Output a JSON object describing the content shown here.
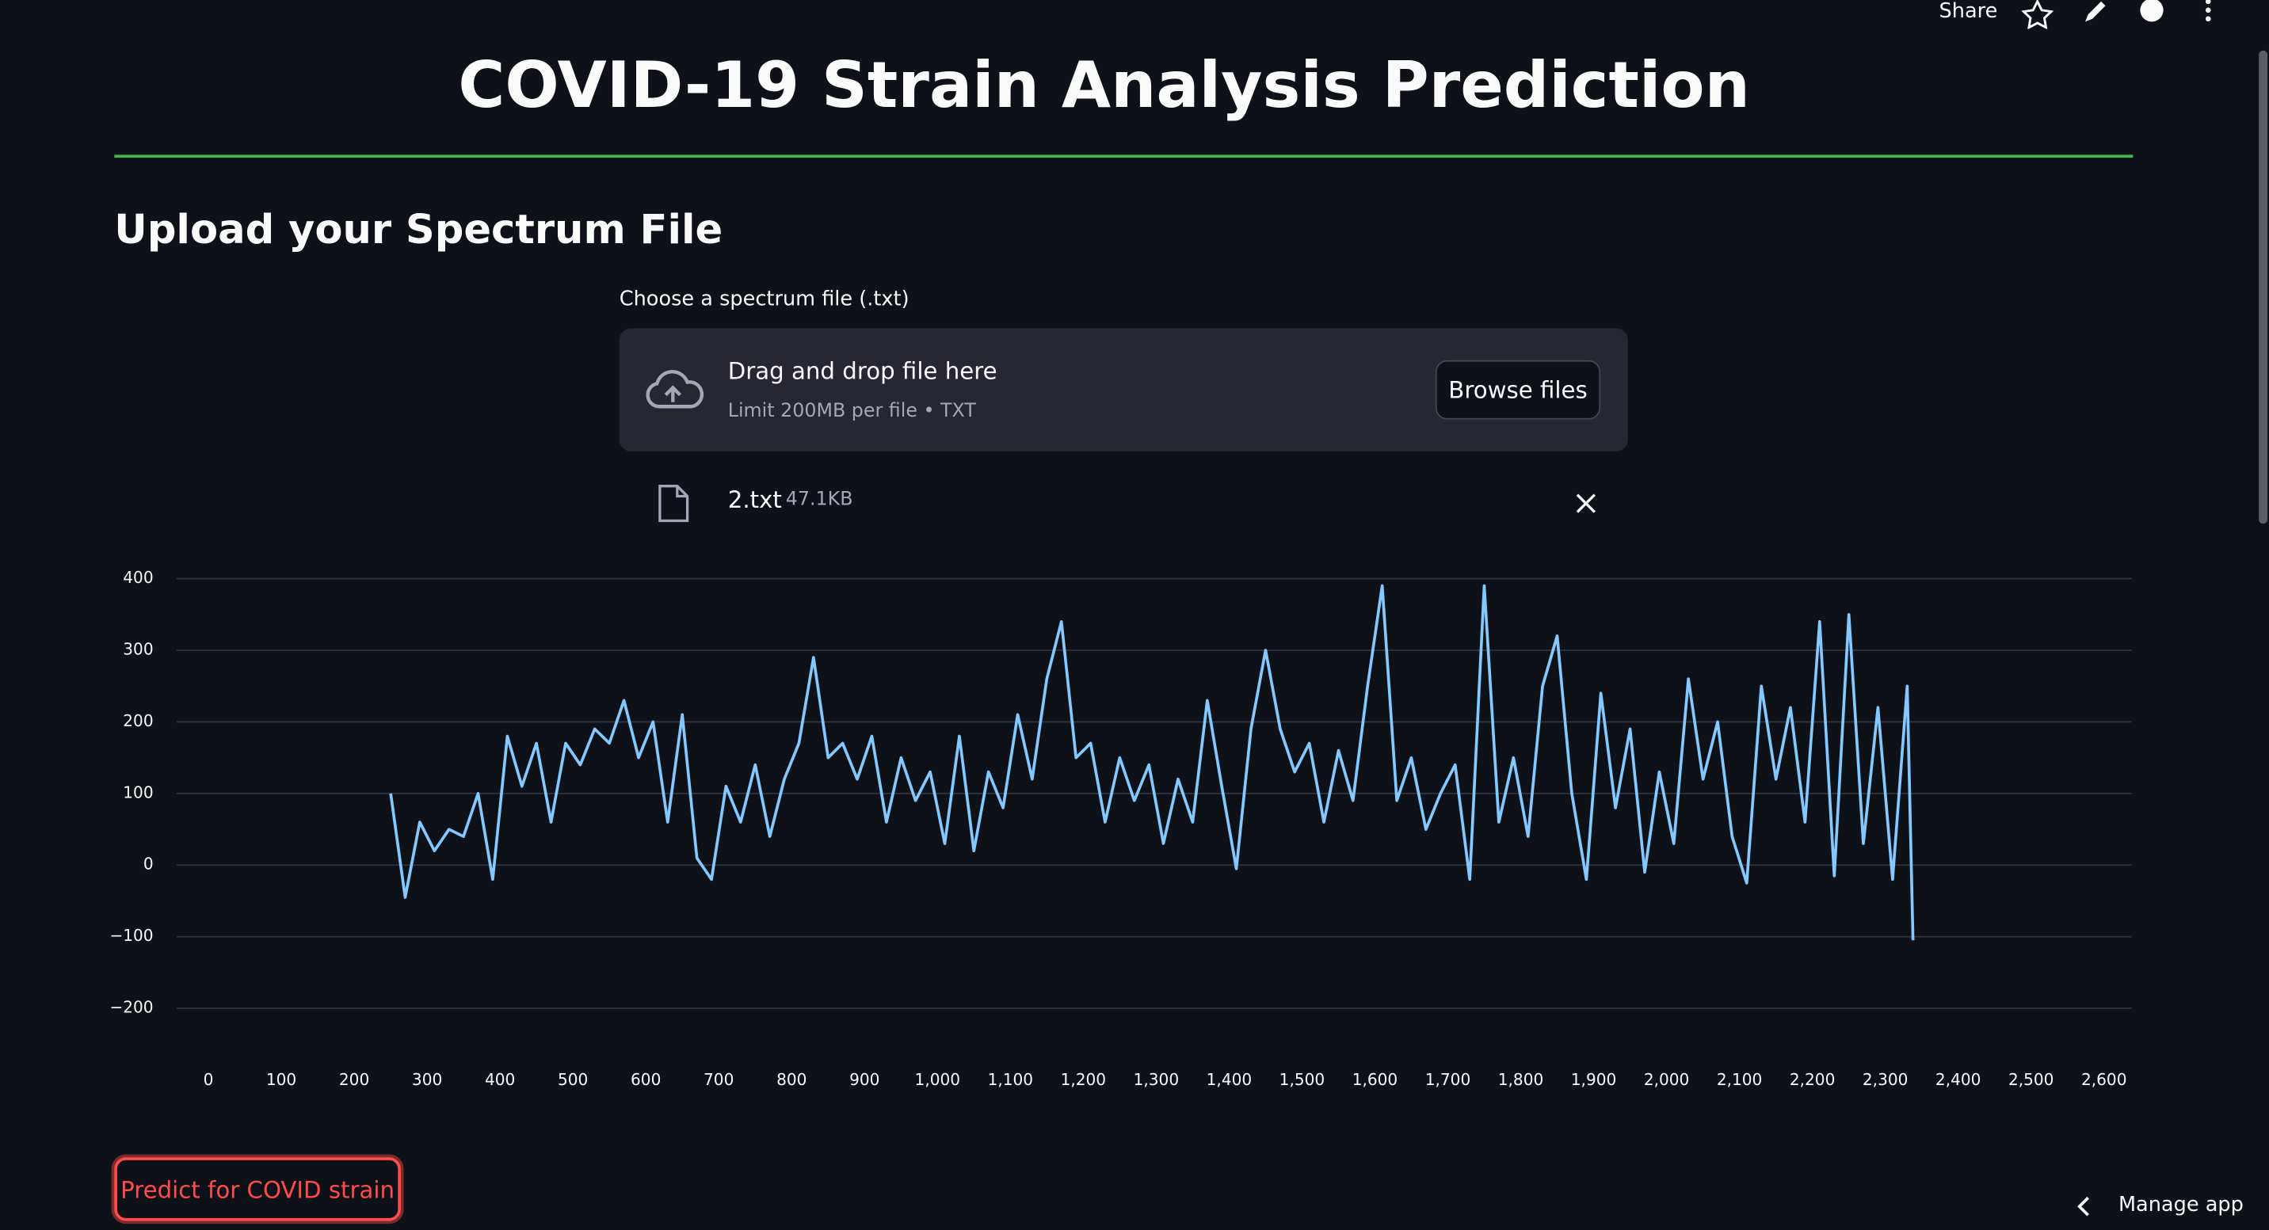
{
  "header": {
    "share": "Share",
    "title": "COVID-19 Strain Analysis Prediction",
    "subheader": "Upload your Spectrum File"
  },
  "uploader": {
    "label": "Choose a spectrum file (.txt)",
    "drop_text": "Drag and drop file here",
    "limit_text": "Limit 200MB per file • TXT",
    "button": "Browse files",
    "file_name": "2.txt",
    "file_size": "47.1KB"
  },
  "predict_button": "Predict for COVID strain",
  "manage_app": "Manage app",
  "chart_data": {
    "type": "line",
    "color": "#83c9ff",
    "grid": true,
    "x": [
      250,
      270,
      290,
      310,
      330,
      350,
      370,
      390,
      410,
      430,
      450,
      470,
      490,
      510,
      530,
      550,
      570,
      590,
      610,
      630,
      650,
      670,
      690,
      710,
      730,
      750,
      770,
      790,
      810,
      830,
      850,
      870,
      890,
      910,
      930,
      950,
      970,
      990,
      1010,
      1030,
      1050,
      1070,
      1090,
      1110,
      1130,
      1150,
      1170,
      1190,
      1210,
      1230,
      1250,
      1270,
      1290,
      1310,
      1330,
      1350,
      1370,
      1390,
      1410,
      1430,
      1450,
      1470,
      1490,
      1510,
      1530,
      1550,
      1570,
      1590,
      1610,
      1630,
      1650,
      1670,
      1690,
      1710,
      1730,
      1750,
      1770,
      1790,
      1810,
      1830,
      1850,
      1870,
      1890,
      1910,
      1930,
      1950,
      1970,
      1990,
      2010,
      2030,
      2050,
      2070,
      2090,
      2110,
      2130,
      2150,
      2170,
      2190,
      2210,
      2230,
      2250,
      2270,
      2290,
      2310,
      2330,
      2338
    ],
    "values": [
      100,
      -45,
      60,
      20,
      50,
      40,
      100,
      -20,
      180,
      110,
      170,
      60,
      170,
      140,
      190,
      170,
      230,
      150,
      200,
      60,
      210,
      10,
      -20,
      110,
      60,
      140,
      40,
      120,
      170,
      290,
      150,
      170,
      120,
      180,
      60,
      150,
      90,
      130,
      30,
      180,
      20,
      130,
      80,
      210,
      120,
      260,
      340,
      150,
      170,
      60,
      150,
      90,
      140,
      30,
      120,
      60,
      230,
      110,
      -5,
      190,
      300,
      190,
      130,
      170,
      60,
      160,
      90,
      250,
      390,
      90,
      150,
      50,
      100,
      140,
      -20,
      390,
      60,
      150,
      40,
      250,
      320,
      100,
      -20,
      240,
      80,
      190,
      -10,
      130,
      30,
      260,
      120,
      200,
      40,
      -25,
      250,
      120,
      220,
      60,
      340,
      -15,
      350,
      30,
      220,
      -20,
      250,
      -105
    ],
    "xlim": [
      0,
      2600
    ],
    "xticks": [
      0,
      100,
      200,
      300,
      400,
      500,
      600,
      700,
      800,
      900,
      {
        "value": 1000,
        "label": "1,000"
      },
      {
        "value": 1100,
        "label": "1,100"
      },
      {
        "value": 1200,
        "label": "1,200"
      },
      {
        "value": 1300,
        "label": "1,300"
      },
      {
        "value": 1400,
        "label": "1,400"
      },
      {
        "value": 1500,
        "label": "1,500"
      },
      {
        "value": 1600,
        "label": "1,600"
      },
      {
        "value": 1700,
        "label": "1,700"
      },
      {
        "value": 1800,
        "label": "1,800"
      },
      {
        "value": 1900,
        "label": "1,900"
      },
      {
        "value": 2000,
        "label": "2,000"
      },
      {
        "value": 2100,
        "label": "2,100"
      },
      {
        "value": 2200,
        "label": "2,200"
      },
      {
        "value": 2300,
        "label": "2,300"
      },
      {
        "value": 2400,
        "label": "2,400"
      },
      {
        "value": 2500,
        "label": "2,500"
      },
      {
        "value": 2600,
        "label": "2,600"
      }
    ],
    "ylim": [
      -200,
      400
    ],
    "yticks": [
      {
        "value": -200,
        "label": "−200"
      },
      {
        "value": -100,
        "label": "−100"
      },
      0,
      100,
      200,
      300,
      400
    ]
  }
}
